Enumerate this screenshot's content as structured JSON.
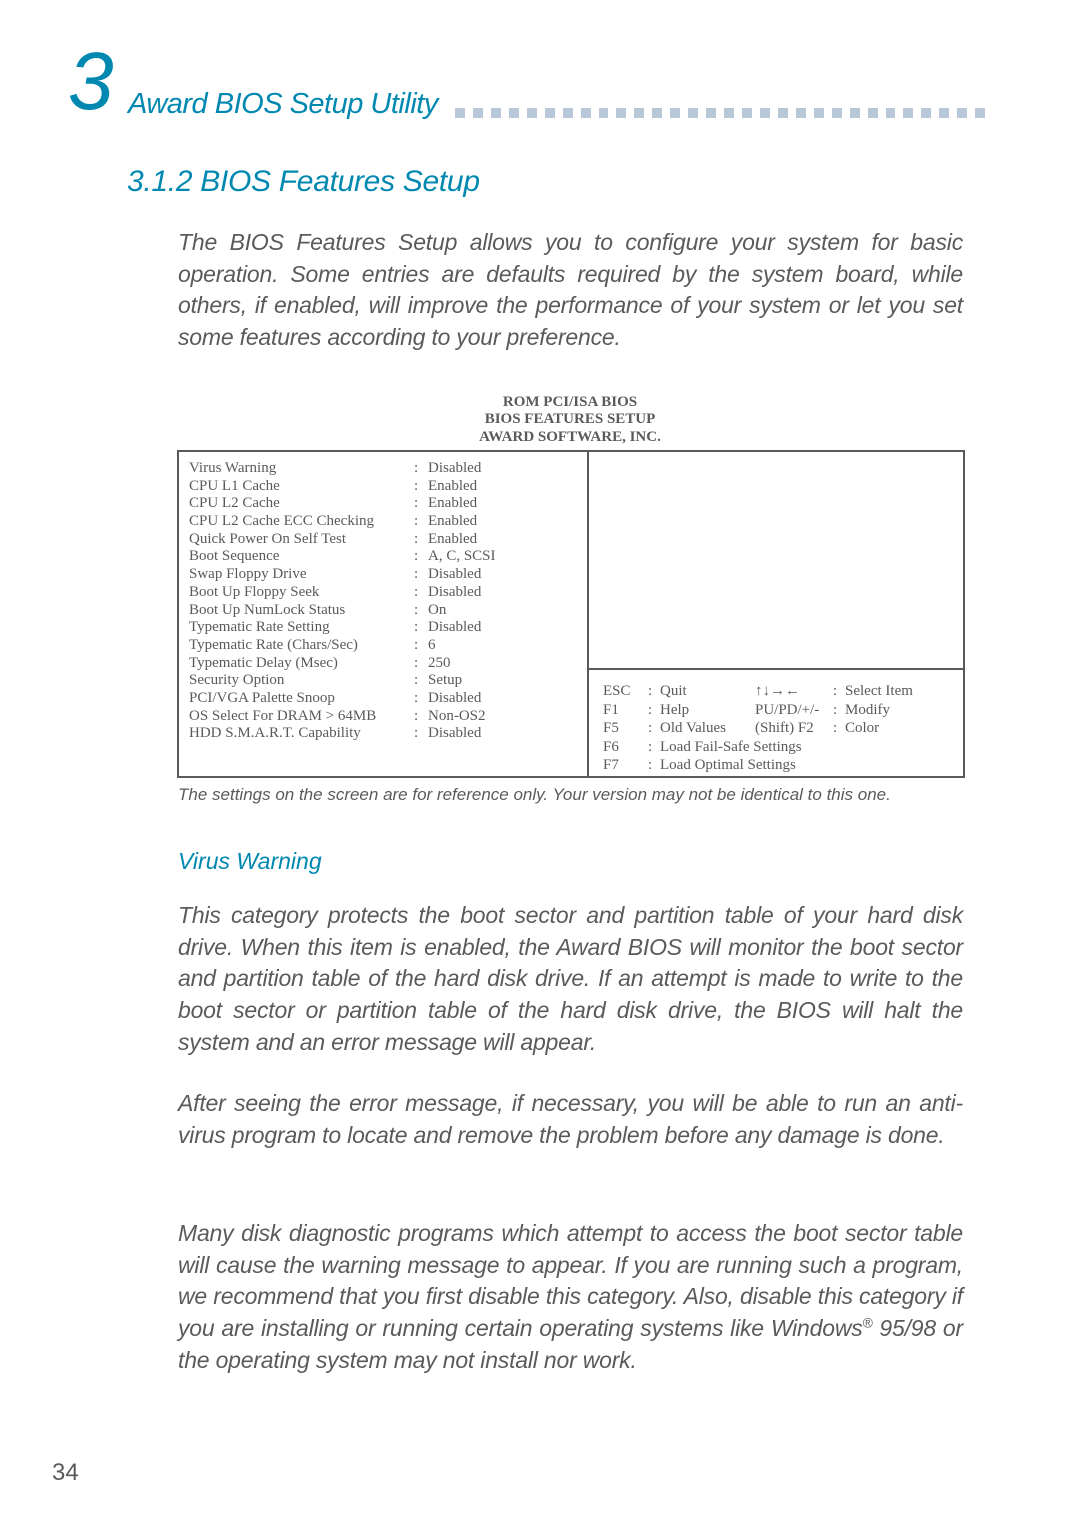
{
  "chapter_num": "3",
  "chapter_title": "Award BIOS Setup Utility",
  "section_heading": "3.1.2 BIOS Features Setup",
  "intro": "The BIOS Features Setup allows you to configure your system for basic operation. Some entries are defaults required by the system board, while others, if enabled, will improve the performance of your system or let you set some features according to your preference.",
  "bios_title_l1": "ROM PCI/ISA BIOS",
  "bios_title_l2": "BIOS FEATURES SETUP",
  "bios_title_l3": "AWARD SOFTWARE, INC.",
  "settings": [
    {
      "label": "Virus Warning",
      "value": "Disabled"
    },
    {
      "label": "CPU L1 Cache",
      "value": "Enabled"
    },
    {
      "label": "CPU L2 Cache",
      "value": "Enabled"
    },
    {
      "label": "CPU L2 Cache ECC Checking",
      "value": "Enabled"
    },
    {
      "label": "Quick Power On Self Test",
      "value": "Enabled"
    },
    {
      "label": "Boot Sequence",
      "value": "A, C, SCSI"
    },
    {
      "label": "Swap Floppy Drive",
      "value": "Disabled"
    },
    {
      "label": "Boot Up Floppy Seek",
      "value": "Disabled"
    },
    {
      "label": "Boot Up NumLock Status",
      "value": "On"
    },
    {
      "label": "Typematic Rate Setting",
      "value": "Disabled"
    },
    {
      "label": "Typematic Rate (Chars/Sec)",
      "value": "6"
    },
    {
      "label": "Typematic Delay (Msec)",
      "value": "250"
    },
    {
      "label": "Security Option",
      "value": "Setup"
    },
    {
      "label": "PCI/VGA Palette Snoop",
      "value": "Disabled"
    },
    {
      "label": "OS Select For DRAM > 64MB",
      "value": "Non-OS2"
    },
    {
      "label": "HDD S.M.A.R.T. Capability",
      "value": "Disabled"
    }
  ],
  "help": {
    "esc_key": "ESC",
    "esc_label": "Quit",
    "esc_mid": "↑↓→←",
    "esc_val": "Select Item",
    "f1_key": "F1",
    "f1_label": "Help",
    "f1_mid": "PU/PD/+/-",
    "f1_val": "Modify",
    "f5_key": "F5",
    "f5_label": "Old Values",
    "f5_mid": "(Shift) F2",
    "f5_val": "Color",
    "f6_key": "F6",
    "f6_label": "Load Fail-Safe Settings",
    "f7_key": "F7",
    "f7_label": "Load Optimal Settings"
  },
  "caption": "The settings on the screen are for reference only. Your version may not be identical to this one.",
  "subheading1": "Virus Warning",
  "para1": "This category protects the boot sector and partition table of your hard disk drive. When this item is enabled, the Award BIOS will monitor the boot sector and partition table of the hard disk drive. If an attempt is made to write to the boot sector or partition table of the hard disk drive, the BIOS will halt the system and an error message will appear.",
  "para2": "After seeing the error message, if necessary, you will be able to run an anti-virus program to locate and remove the problem before any damage is done.",
  "para3a": "Many disk diagnostic programs which attempt to access the boot sector table will cause the warning message to appear. If you are running such a program, we recommend that you first disable this category. Also, disable this category if you are installing or running certain operating systems like Windows",
  "para3b": " 95/98 or the operating system may not install nor work.",
  "reg": "®",
  "page_num": "34"
}
